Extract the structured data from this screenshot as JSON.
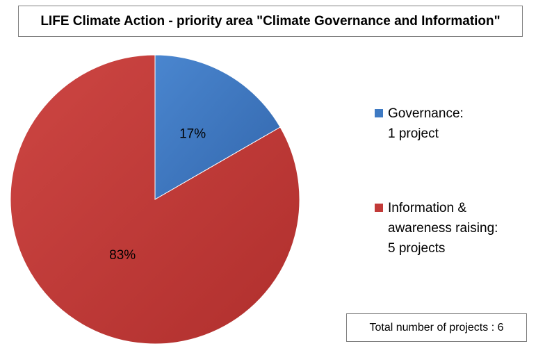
{
  "chart_data": {
    "type": "pie",
    "title": "LIFE Climate Action - priority area \"Climate Governance and Information\"",
    "slices": [
      {
        "name_lines": [
          "Governance:",
          "1 project"
        ],
        "value": 1,
        "label": "17%",
        "color": "#3e7ac3"
      },
      {
        "name_lines": [
          "Information &",
          "awareness raising:",
          "5 projects"
        ],
        "value": 5,
        "label": "83%",
        "color": "#c23a38"
      }
    ],
    "legend_position": "right",
    "annotation": "Total number of projects : 6"
  }
}
